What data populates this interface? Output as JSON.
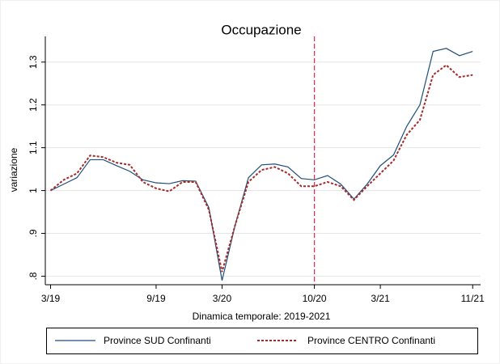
{
  "chart_data": {
    "type": "line",
    "title": "Occupazione",
    "x_label": "Dinamica temporale: 2019-2021",
    "y_label": "variazione",
    "x": [
      0,
      1,
      2,
      3,
      4,
      5,
      6,
      7,
      8,
      9,
      10,
      11,
      12,
      13,
      14,
      15,
      16,
      17,
      18,
      19,
      20,
      21,
      22,
      23,
      24,
      25,
      26,
      27,
      28,
      29,
      30,
      31,
      32
    ],
    "series": [
      {
        "name": "Province SUD Confinanti",
        "color": "#1f4e79",
        "dash": "solid",
        "values": [
          1.0,
          1.015,
          1.03,
          1.072,
          1.072,
          1.058,
          1.045,
          1.025,
          1.018,
          1.016,
          1.023,
          1.022,
          0.96,
          0.79,
          0.92,
          1.03,
          1.06,
          1.062,
          1.055,
          1.028,
          1.025,
          1.035,
          1.015,
          0.98,
          1.015,
          1.058,
          1.083,
          1.15,
          1.2,
          1.325,
          1.332,
          1.315,
          1.325
        ]
      },
      {
        "name": "Province CENTRO Confinanti",
        "color": "#a52a2a",
        "dash": "dotted",
        "values": [
          1.0,
          1.025,
          1.04,
          1.082,
          1.078,
          1.065,
          1.06,
          1.02,
          1.005,
          0.998,
          1.02,
          1.02,
          0.955,
          0.81,
          0.92,
          1.02,
          1.048,
          1.055,
          1.04,
          1.01,
          1.01,
          1.02,
          1.01,
          0.978,
          1.01,
          1.04,
          1.07,
          1.13,
          1.165,
          1.27,
          1.293,
          1.265,
          1.27
        ]
      }
    ],
    "vline": {
      "x": 20,
      "color": "#d6365a"
    },
    "xlim": [
      -0.4,
      32.6
    ],
    "xticks": [
      {
        "value": 0,
        "label": "3/19"
      },
      {
        "value": 8,
        "label": "9/19"
      },
      {
        "value": 13,
        "label": "3/20"
      },
      {
        "value": 20,
        "label": "10/20"
      },
      {
        "value": 25,
        "label": "3/21"
      },
      {
        "value": 32,
        "label": "11/21"
      }
    ],
    "ylim": [
      0.78,
      1.36
    ],
    "yticks": [
      {
        "value": 0.8,
        "label": ".8"
      },
      {
        "value": 0.9,
        "label": ".9"
      },
      1,
      1.1,
      1.2,
      1.3
    ],
    "grid": true,
    "legend": "bottom"
  }
}
